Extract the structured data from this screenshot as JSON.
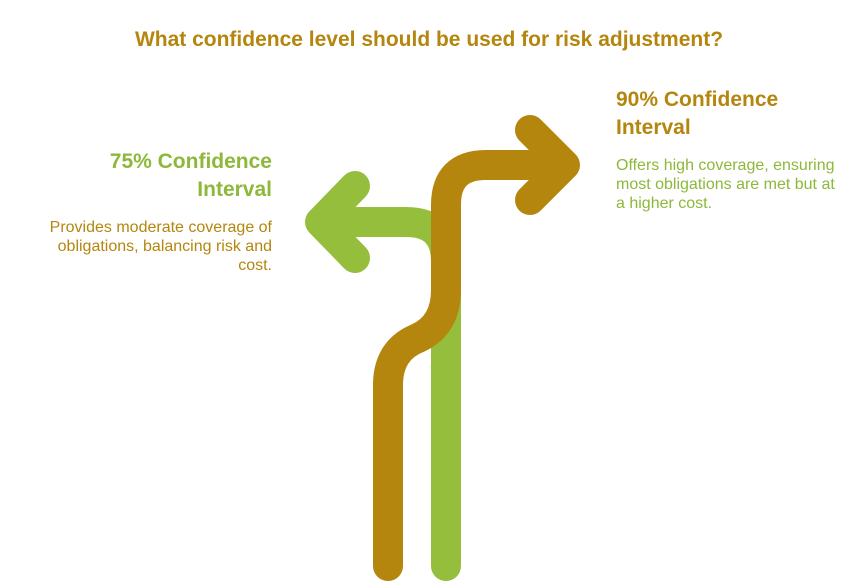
{
  "title": "What confidence level should be used for risk adjustment?",
  "left_option": {
    "heading": "75% Confidence Interval",
    "description": "Provides moderate coverage of obligations, balancing risk and cost."
  },
  "right_option": {
    "heading": "90% Confidence Interval",
    "description": "Offers high coverage, ensuring most obligations are met but at a higher cost."
  },
  "colors": {
    "gold": "#B5860E",
    "green": "#95BE3C",
    "green_text": "#8DB83A"
  }
}
